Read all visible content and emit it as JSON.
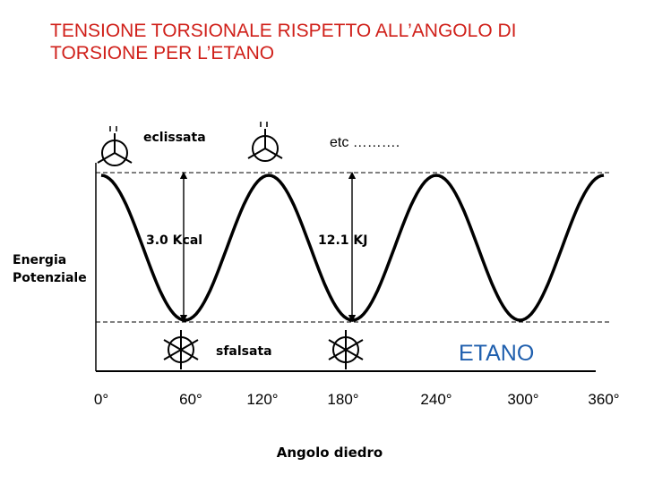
{
  "title": {
    "line1": "TENSIONE TORSIONALE RISPETTO ALL’ANGOLO DI",
    "line2": "TORSIONE PER L’ETANO"
  },
  "chart_data": {
    "type": "line",
    "title": "TENSIONE TORSIONALE RISPETTO ALL’ANGOLO DI TORSIONE PER L’ETANO",
    "xlabel": "Angolo diedro",
    "ylabel": "Energia Potenziale",
    "x_ticks": [
      "0°",
      "60°",
      "120°",
      "180°",
      "240°",
      "300°",
      "360°"
    ],
    "xlim": [
      0,
      360
    ],
    "ylim_kj": [
      0,
      12.1
    ],
    "series": [
      {
        "x": [
          0,
          15,
          30,
          45,
          60,
          75,
          90,
          105,
          120,
          135,
          150,
          165,
          180,
          195,
          210,
          225,
          240,
          255,
          270,
          285,
          300,
          315,
          330,
          345,
          360
        ],
        "y": [
          12.1,
          10.4,
          6.05,
          1.77,
          0,
          1.77,
          6.05,
          10.4,
          12.1,
          10.4,
          6.05,
          1.77,
          0,
          1.77,
          6.05,
          10.4,
          12.1,
          10.4,
          6.05,
          1.77,
          0,
          1.77,
          6.05,
          10.4,
          12.1
        ]
      }
    ],
    "annotations": {
      "eclipsed": "eclissata",
      "staggered": "sfalsata",
      "etc": "etc ……….",
      "barrier_kcal": "3.0 Kcal",
      "barrier_kj": "12.1 KJ",
      "molecule": "ETANO"
    },
    "grid": false
  },
  "colors": {
    "title": "#d0201a",
    "molecule_label": "#1f5fae",
    "curve": "#000000"
  }
}
